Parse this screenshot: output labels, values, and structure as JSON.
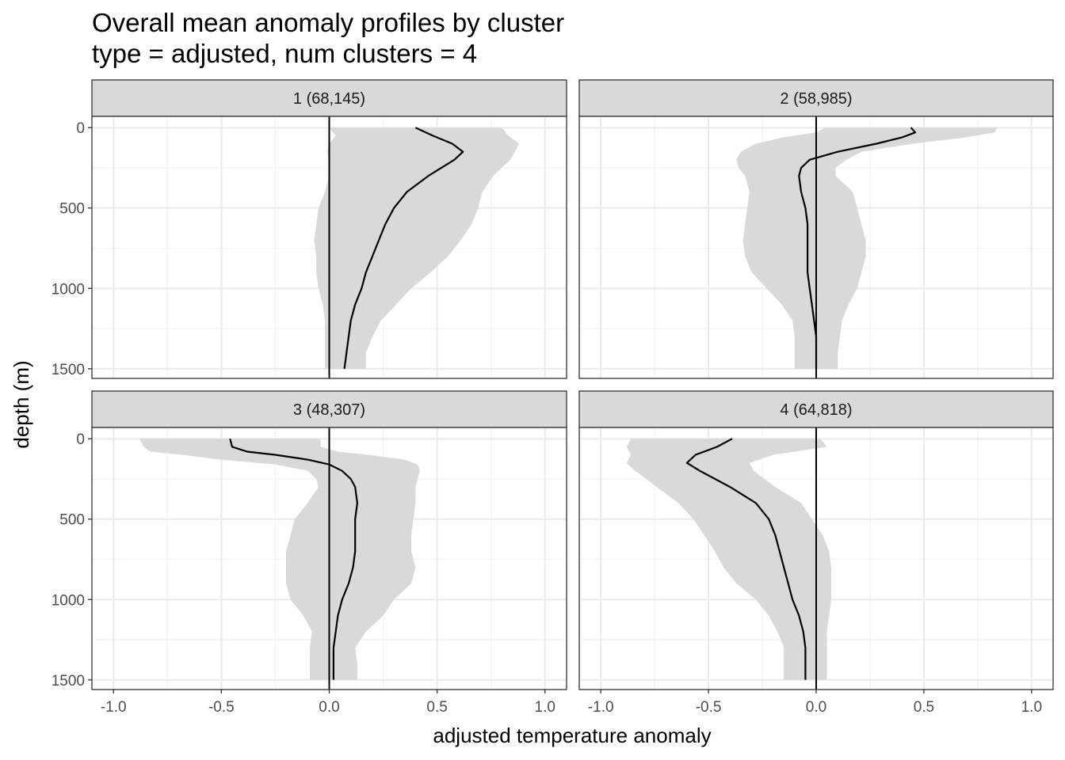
{
  "chart_data": {
    "type": "line",
    "title": "Overall mean anomaly profiles by cluster",
    "subtitle": "type = adjusted, num clusters = 4",
    "xlabel": "adjusted temperature anomaly",
    "ylabel": "depth (m)",
    "xlim": [
      -1.1,
      1.1
    ],
    "ylim": [
      1560,
      -70
    ],
    "y_reversed": true,
    "x_ticks": [
      -1.0,
      -0.5,
      0.0,
      0.5,
      1.0
    ],
    "x_tick_labels": [
      "-1.0",
      "-0.5",
      "0.0",
      "0.5",
      "1.0"
    ],
    "y_ticks": [
      0,
      500,
      1000,
      1500
    ],
    "y_tick_labels": [
      "0",
      "500",
      "1000",
      "1500"
    ],
    "grid": true,
    "reference_line_x": 0,
    "ribbon_color": "#d9d9d9",
    "line_color": "#000000",
    "panels": [
      {
        "label": "1 (68,145)",
        "depth": [
          0,
          50,
          100,
          150,
          200,
          300,
          400,
          500,
          600,
          700,
          800,
          900,
          1000,
          1100,
          1200,
          1300,
          1400,
          1500
        ],
        "mean": [
          0.4,
          0.48,
          0.57,
          0.62,
          0.58,
          0.46,
          0.36,
          0.3,
          0.26,
          0.23,
          0.2,
          0.17,
          0.15,
          0.12,
          0.1,
          0.09,
          0.08,
          0.07
        ],
        "lower": [
          0.0,
          0.03,
          0.0,
          -0.01,
          0.0,
          0.0,
          -0.02,
          -0.05,
          -0.06,
          -0.07,
          -0.06,
          -0.06,
          -0.05,
          -0.03,
          -0.02,
          -0.02,
          -0.02,
          -0.02
        ],
        "upper": [
          0.8,
          0.83,
          0.88,
          0.86,
          0.84,
          0.76,
          0.71,
          0.69,
          0.66,
          0.61,
          0.55,
          0.47,
          0.38,
          0.31,
          0.24,
          0.2,
          0.17,
          0.17
        ]
      },
      {
        "label": "2 (58,985)",
        "depth": [
          0,
          30,
          60,
          100,
          150,
          200,
          250,
          300,
          400,
          500,
          600,
          700,
          800,
          900,
          1000,
          1100,
          1200,
          1300,
          1400,
          1500
        ],
        "mean": [
          0.44,
          0.46,
          0.4,
          0.28,
          0.1,
          -0.03,
          -0.07,
          -0.08,
          -0.07,
          -0.05,
          -0.04,
          -0.04,
          -0.04,
          -0.04,
          -0.03,
          -0.02,
          -0.01,
          0.0,
          0.0,
          0.0
        ],
        "lower": [
          0.04,
          0.0,
          -0.15,
          -0.28,
          -0.35,
          -0.37,
          -0.36,
          -0.33,
          -0.31,
          -0.32,
          -0.33,
          -0.34,
          -0.33,
          -0.3,
          -0.23,
          -0.16,
          -0.11,
          -0.1,
          -0.1,
          -0.1
        ],
        "upper": [
          0.84,
          0.83,
          0.7,
          0.45,
          0.21,
          0.14,
          0.09,
          0.09,
          0.17,
          0.19,
          0.21,
          0.23,
          0.23,
          0.21,
          0.19,
          0.15,
          0.12,
          0.11,
          0.1,
          0.1
        ]
      },
      {
        "label": "3 (48,307)",
        "depth": [
          0,
          50,
          80,
          100,
          130,
          160,
          200,
          250,
          300,
          400,
          500,
          600,
          700,
          800,
          900,
          1000,
          1100,
          1200,
          1300,
          1400,
          1500
        ],
        "mean": [
          -0.46,
          -0.45,
          -0.38,
          -0.25,
          -0.1,
          0.0,
          0.06,
          0.1,
          0.12,
          0.13,
          0.12,
          0.12,
          0.12,
          0.11,
          0.09,
          0.06,
          0.04,
          0.03,
          0.02,
          0.02,
          0.02
        ],
        "lower": [
          -0.88,
          -0.86,
          -0.83,
          -0.68,
          -0.5,
          -0.25,
          -0.1,
          -0.06,
          -0.05,
          -0.1,
          -0.16,
          -0.18,
          -0.2,
          -0.2,
          -0.2,
          -0.18,
          -0.12,
          -0.08,
          -0.09,
          -0.09,
          -0.09
        ],
        "upper": [
          -0.04,
          -0.04,
          0.04,
          0.18,
          0.35,
          0.41,
          0.42,
          0.41,
          0.4,
          0.4,
          0.39,
          0.38,
          0.38,
          0.4,
          0.38,
          0.3,
          0.25,
          0.17,
          0.12,
          0.13,
          0.13
        ]
      },
      {
        "label": "4 (64,818)",
        "depth": [
          0,
          50,
          100,
          150,
          200,
          300,
          400,
          500,
          600,
          700,
          800,
          900,
          1000,
          1100,
          1200,
          1300,
          1400,
          1500
        ],
        "mean": [
          -0.39,
          -0.46,
          -0.56,
          -0.6,
          -0.54,
          -0.4,
          -0.28,
          -0.22,
          -0.19,
          -0.17,
          -0.15,
          -0.13,
          -0.11,
          -0.08,
          -0.06,
          -0.05,
          -0.05,
          -0.05
        ],
        "lower": [
          -0.86,
          -0.88,
          -0.86,
          -0.88,
          -0.84,
          -0.74,
          -0.64,
          -0.57,
          -0.52,
          -0.47,
          -0.43,
          -0.37,
          -0.28,
          -0.22,
          -0.18,
          -0.15,
          -0.15,
          -0.15
        ],
        "upper": [
          0.02,
          0.05,
          -0.2,
          -0.31,
          -0.29,
          -0.19,
          -0.07,
          -0.02,
          0.03,
          0.06,
          0.07,
          0.07,
          0.07,
          0.06,
          0.05,
          0.05,
          0.05,
          0.05
        ]
      }
    ]
  }
}
